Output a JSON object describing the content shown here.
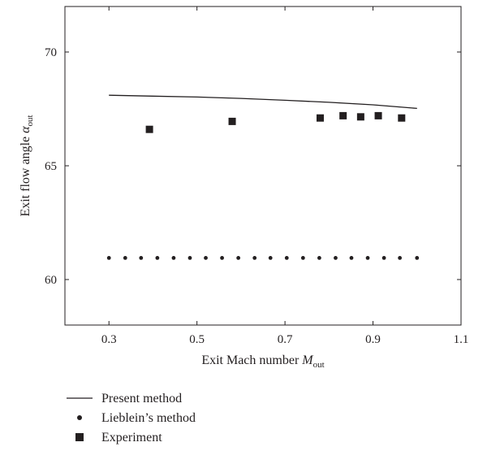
{
  "chart_data": {
    "type": "line",
    "xlabel": "Exit Mach number",
    "xlabel_symbol": "M",
    "xlabel_sub": "out",
    "ylabel": "Exit flow angle",
    "ylabel_symbol": "α",
    "ylabel_sub": "out",
    "xlim": [
      0.2,
      1.1
    ],
    "ylim": [
      58,
      72
    ],
    "xticks": [
      0.3,
      0.5,
      0.7,
      0.9,
      1.1
    ],
    "xtick_labels": [
      "0.3",
      "0.5",
      "0.7",
      "0.9",
      "1.1"
    ],
    "yticks": [
      60,
      65,
      70
    ],
    "ytick_labels": [
      "60",
      "65",
      "70"
    ],
    "grid": false,
    "legend_position": "below",
    "series": [
      {
        "name": "Present method",
        "style": "line",
        "color": "#231f20",
        "x": [
          0.3,
          0.4,
          0.5,
          0.6,
          0.7,
          0.8,
          0.9,
          1.0
        ],
        "y": [
          68.1,
          68.06,
          68.02,
          67.96,
          67.88,
          67.79,
          67.68,
          67.52
        ]
      },
      {
        "name": "Lieblein’s method",
        "style": "dot",
        "color": "#231f20",
        "x": [
          0.3,
          0.337,
          0.373,
          0.41,
          0.447,
          0.484,
          0.52,
          0.557,
          0.594,
          0.631,
          0.667,
          0.704,
          0.741,
          0.778,
          0.815,
          0.851,
          0.888,
          0.925,
          0.961,
          1.0
        ],
        "y": [
          60.95,
          60.95,
          60.95,
          60.95,
          60.95,
          60.95,
          60.95,
          60.95,
          60.95,
          60.95,
          60.95,
          60.95,
          60.95,
          60.95,
          60.95,
          60.95,
          60.95,
          60.95,
          60.95,
          60.95
        ]
      },
      {
        "name": "Experiment",
        "style": "square",
        "color": "#231f20",
        "x": [
          0.392,
          0.58,
          0.78,
          0.832,
          0.872,
          0.912,
          0.965
        ],
        "y": [
          66.6,
          66.95,
          67.1,
          67.2,
          67.15,
          67.2,
          67.1
        ]
      }
    ]
  }
}
